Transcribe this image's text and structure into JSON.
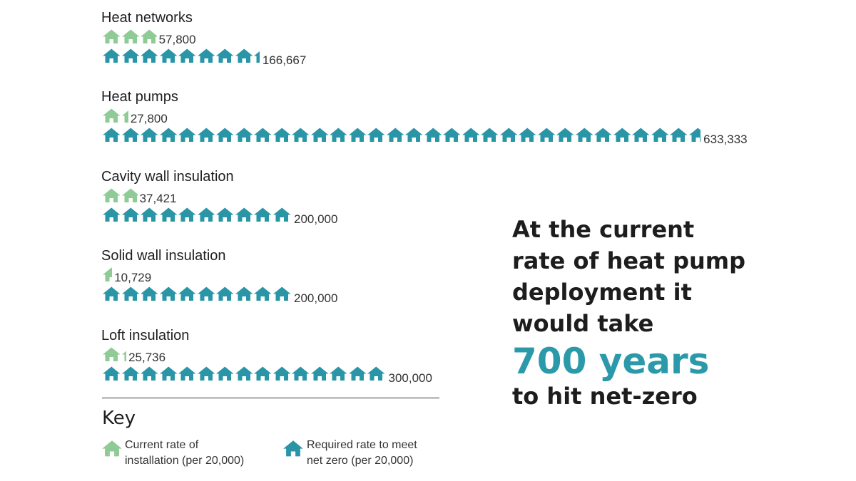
{
  "chart_data": {
    "type": "pictogram-bar",
    "unit_per_icon": 20000,
    "series": [
      {
        "name": "Current rate of installation (per 20,000)",
        "color": "#8fcb95"
      },
      {
        "name": "Required rate to meet net zero (per 20,000)",
        "color": "#2a95a6"
      }
    ],
    "categories": [
      {
        "label": "Heat networks",
        "current": 57800,
        "current_label": "57,800",
        "required": 166667,
        "required_label": "166,667"
      },
      {
        "label": "Heat pumps",
        "current": 27800,
        "current_label": "27,800",
        "required": 633333,
        "required_label": "633,333"
      },
      {
        "label": "Cavity wall insulation",
        "current": 37421,
        "current_label": "37,421",
        "required": 200000,
        "required_label": "200,000"
      },
      {
        "label": "Solid wall insulation",
        "current": 10729,
        "current_label": "10,729",
        "required": 200000,
        "required_label": "200,000"
      },
      {
        "label": "Loft insulation",
        "current": 25736,
        "current_label": "25,736",
        "required": 300000,
        "required_label": "300,000"
      }
    ]
  },
  "key": {
    "title": "Key",
    "current_line1": "Current rate of",
    "current_line2": "installation (per 20,000)",
    "required_line1": "Required rate to meet",
    "required_line2": "net zero (per 20,000)",
    "current_icon": "house-icon",
    "required_icon": "house-icon"
  },
  "callout": {
    "line1": "At the current rate of heat pump deployment it would take",
    "highlight": "700 years",
    "line2": "to hit net-zero"
  },
  "colors": {
    "current": "#8fcb95",
    "required": "#2a95a6",
    "highlight": "#2a9aaa"
  }
}
